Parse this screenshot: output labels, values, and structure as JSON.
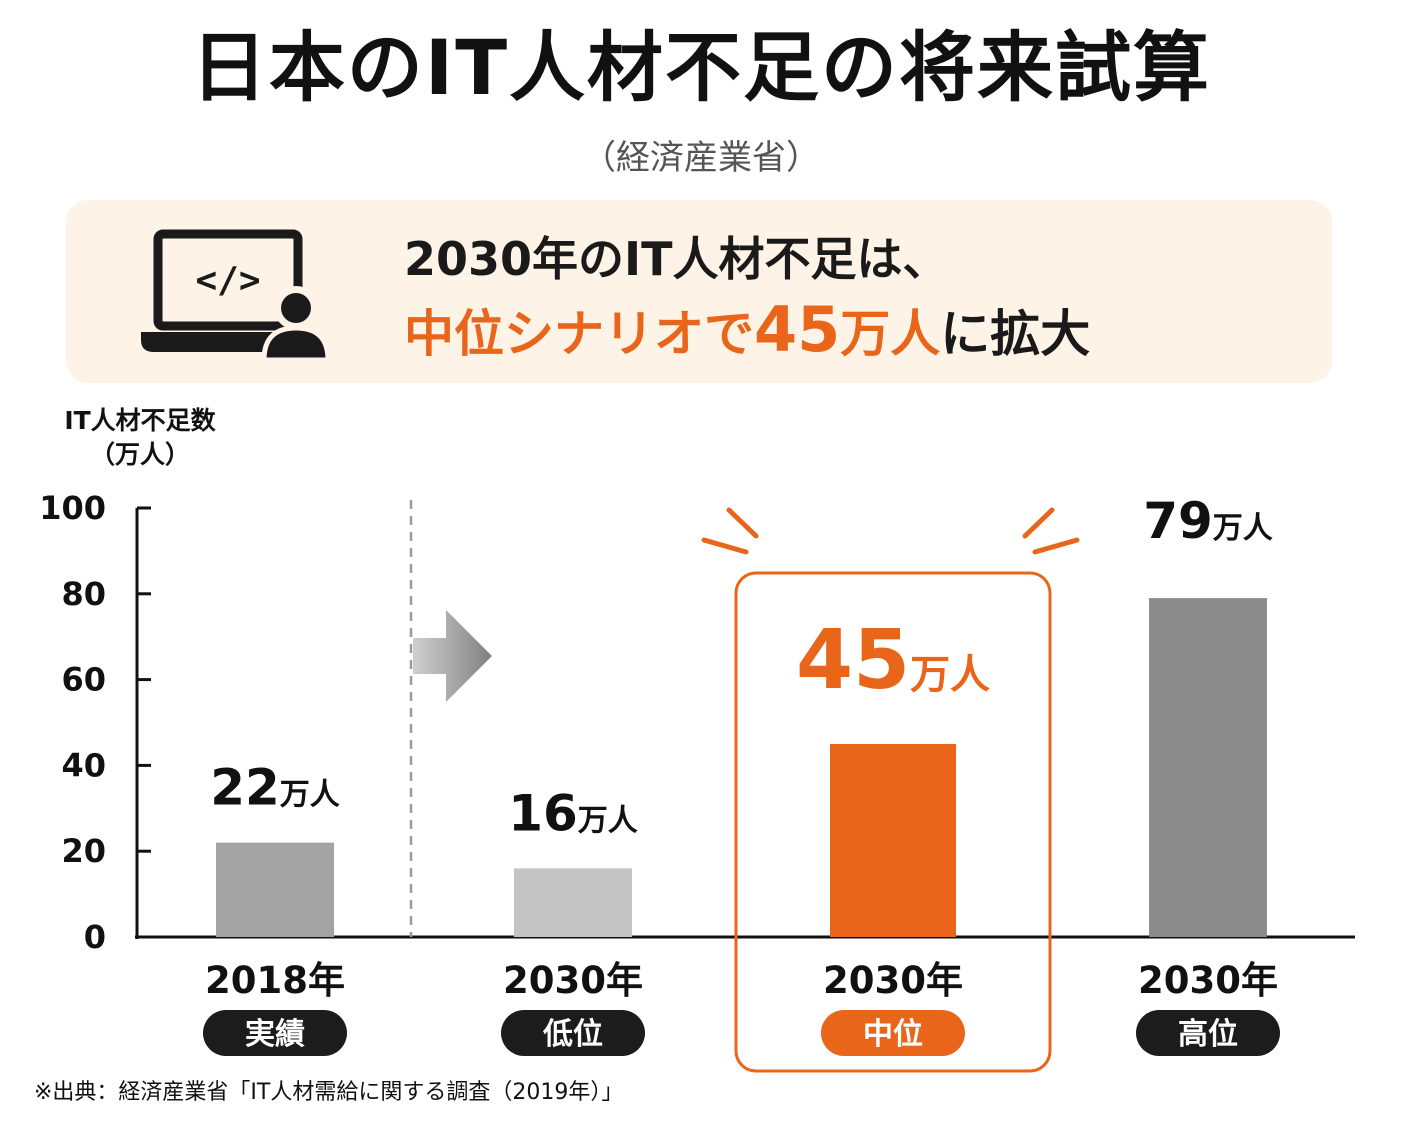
{
  "title": "日本のIT人材不足の将来試算",
  "subtitle": "（経済産業省）",
  "banner": {
    "line1": "2030年のIT人材不足は、",
    "line2_scenario": "中位シナリオで",
    "line2_number": "45",
    "line2_unit": "万人",
    "line2_tail": "に拡大",
    "icon": "laptop-code-user-icon"
  },
  "y_axis_label": [
    "IT人材不足数",
    "（万人）"
  ],
  "colors": {
    "accent": "#e8651a",
    "bar_2018": "#a3a3a3",
    "bar_low": "#c4c4c4",
    "bar_high": "#8c8c8c",
    "banner_bg": "#fdf3e6",
    "pill_dark": "#1c1c1c"
  },
  "chart_data": {
    "type": "bar",
    "title": "日本のIT人材不足の将来試算",
    "ylabel": "IT人材不足数（万人）",
    "xlabel": "",
    "ylim": [
      0,
      100
    ],
    "yticks": [
      "0",
      "20",
      "40",
      "60",
      "80",
      "100"
    ],
    "categories": [
      {
        "year": "2018年",
        "tag": "実績"
      },
      {
        "year": "2030年",
        "tag": "低位"
      },
      {
        "year": "2030年",
        "tag": "中位"
      },
      {
        "year": "2030年",
        "tag": "高位"
      }
    ],
    "values": [
      22,
      16,
      45,
      79
    ],
    "data_labels": [
      {
        "num": "22",
        "unit": "万人"
      },
      {
        "num": "16",
        "unit": "万人"
      },
      {
        "num": "45",
        "unit": "万人"
      },
      {
        "num": "79",
        "unit": "万人"
      }
    ],
    "highlight": "中位",
    "grid": false
  },
  "source": "※出典：経済産業省「IT人材需給に関する調査（2019年）」"
}
